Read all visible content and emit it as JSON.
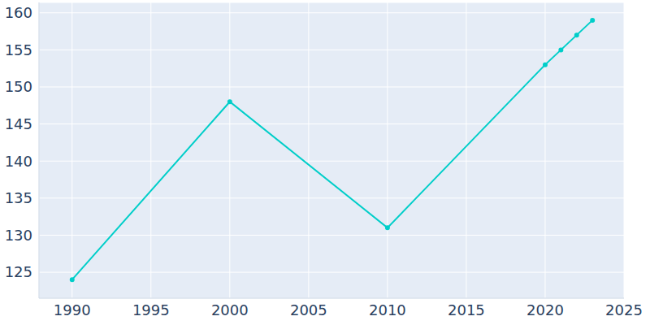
{
  "chart_data": {
    "type": "line",
    "x": [
      1990,
      2000,
      2010,
      2020,
      2021,
      2022,
      2023
    ],
    "values": [
      124,
      148,
      131,
      153,
      155,
      157,
      159
    ],
    "color": "#00cec9",
    "xlim": [
      1987.9,
      2025
    ],
    "xticks": [
      1990,
      1995,
      2000,
      2005,
      2010,
      2015,
      2020,
      2025
    ],
    "ylim": [
      121.5,
      161.4
    ],
    "yticks": [
      125,
      130,
      135,
      140,
      145,
      150,
      155,
      160
    ],
    "grid": true,
    "marker": "circle"
  }
}
